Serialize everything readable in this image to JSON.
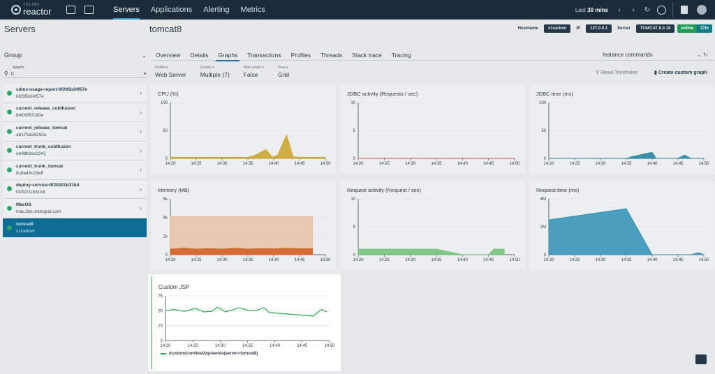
{
  "nav": {
    "logo_small": "TULIAN",
    "logo_big": "reactor",
    "links": [
      "Servers",
      "Applications",
      "Alerting",
      "Metrics"
    ],
    "active_link": "Servers",
    "range_prefix": "Last",
    "range_value": "30 mins"
  },
  "header": {
    "section_title": "Servers",
    "server_title": "tomcat8",
    "meta": {
      "hostname_key": "Hostname",
      "hostname_val": "x1carbon",
      "ip_key": "IP",
      "ip_val": "127.0.0.1",
      "server_key": "Server",
      "server_val": "TOMCAT 8.0.18",
      "status": "online",
      "uptime": "37m"
    }
  },
  "sidebar": {
    "group_label": "Group",
    "search_label": "Search",
    "search_value": "c",
    "servers": [
      {
        "name": "cdms-usage-report-6f295b34f57e",
        "id": "6f295b34f57e"
      },
      {
        "name": "current_release_coldfusion",
        "id": "84f00f67c80e"
      },
      {
        "name": "current_release_tomcat",
        "id": "a6175a26250a"
      },
      {
        "name": "current_trunk_coldfusion",
        "id": "ee98b2ec2241"
      },
      {
        "name": "current_trunk_tomcat",
        "id": "6c8a49c29eff"
      },
      {
        "name": "deploy-service-9f29201b31b4",
        "id": "9f29201b31b4"
      },
      {
        "name": "MacOS",
        "id": "mac.bbn.intergral.com"
      },
      {
        "name": "tomcat8",
        "id": "x1carbon"
      }
    ]
  },
  "tabs": [
    "Overview",
    "Details",
    "Graphs",
    "Transactions",
    "Profiles",
    "Threads",
    "Stack trace",
    "Tracing"
  ],
  "active_tab": "Graphs",
  "instance_commands": "Instance commands",
  "filters": [
    {
      "label": "Profile ▾",
      "value": "Web Server"
    },
    {
      "label": "Graphs ▾",
      "value": "Multiple (7)"
    },
    {
      "label": "Hide empty ▾",
      "value": "False"
    },
    {
      "label": "View ▾",
      "value": "Grid"
    }
  ],
  "reset_timeframe": "Reset Timeframe",
  "create_custom_graph": "Create custom graph",
  "panels": {
    "cpu": "CPU (%)",
    "jdbc_activity": "JDBC activity (Requests / sec)",
    "jdbc_time": "JDBC time (ms)",
    "memory": "Memory (MB)",
    "request_activity": "Request activity (Request / sec)",
    "request_time": "Request time (ms)",
    "custom_jsp": "Custom JSP",
    "custom_legend": "/custom/com/test/jsp/series(server=tomcat8)"
  },
  "colors": {
    "cpu": "#c9a227",
    "jdbc_time": "#1f7fa0",
    "memory_band": "#e8b898",
    "memory_line": "#d45a1e",
    "request_activity": "#6fbf72",
    "request_time": "#2f8fb4",
    "custom": "#2ca84e",
    "active_server": "#0e6b93"
  },
  "chart_data": [
    {
      "type": "area",
      "title": "CPU (%)",
      "x": [
        "14:20",
        "14:25",
        "14:30",
        "14:35",
        "14:40",
        "14:45",
        "14:50"
      ],
      "ylim": [
        0,
        100
      ],
      "yticks": [
        "0",
        "50",
        "100"
      ],
      "series": [
        {
          "points": [
            [
              0,
              2
            ],
            [
              1,
              2
            ],
            [
              2,
              2
            ],
            [
              3,
              2
            ],
            [
              3.3,
              6
            ],
            [
              3.7,
              16
            ],
            [
              3.95,
              2
            ],
            [
              4.15,
              6
            ],
            [
              4.5,
              42
            ],
            [
              4.75,
              3
            ],
            [
              5,
              2
            ],
            [
              6,
              2
            ]
          ]
        }
      ]
    },
    {
      "type": "line",
      "title": "JDBC activity (Requests / sec)",
      "x": [
        "14:20",
        "14:25",
        "14:30",
        "14:35",
        "14:40",
        "14:45",
        "14:50"
      ],
      "ylim": [
        0,
        10
      ],
      "yticks": [
        "0",
        "5",
        "10"
      ],
      "series": [
        {
          "points": [
            [
              0,
              0
            ],
            [
              6,
              0
            ]
          ]
        }
      ]
    },
    {
      "type": "area",
      "title": "JDBC time (ms)",
      "x": [
        "14:20",
        "14:25",
        "14:30",
        "14:35",
        "14:40",
        "14:45",
        "14:50"
      ],
      "ylim": [
        0,
        100
      ],
      "yticks": [
        "0",
        "50",
        "100"
      ],
      "series": [
        {
          "points": [
            [
              0,
              0
            ],
            [
              3,
              0
            ],
            [
              3.2,
              3
            ],
            [
              4,
              11
            ],
            [
              4.15,
              0
            ],
            [
              5,
              0
            ],
            [
              5.25,
              6
            ],
            [
              5.5,
              0
            ],
            [
              6,
              0
            ]
          ]
        }
      ]
    },
    {
      "type": "area",
      "title": "Memory (MB)",
      "x": [
        "14:20",
        "14:25",
        "14:30",
        "14:35",
        "14:40",
        "14:45",
        "14:50"
      ],
      "ylim": [
        0,
        6000
      ],
      "yticks": [
        "0",
        "2k",
        "4k",
        "6k"
      ],
      "series": [
        {
          "points": [
            [
              0,
              4100
            ],
            [
              5.5,
              4100
            ]
          ]
        },
        {
          "points": [
            [
              0,
              600
            ],
            [
              0.5,
              700
            ],
            [
              1,
              600
            ],
            [
              1.5,
              650
            ],
            [
              2,
              600
            ],
            [
              2.5,
              700
            ],
            [
              3,
              600
            ],
            [
              3.5,
              650
            ],
            [
              4,
              620
            ],
            [
              4.5,
              700
            ],
            [
              5,
              640
            ],
            [
              5.5,
              650
            ]
          ]
        }
      ]
    },
    {
      "type": "area",
      "title": "Request activity (Request / sec)",
      "x": [
        "14:20",
        "14:25",
        "14:30",
        "14:35",
        "14:40",
        "14:45",
        "14:50"
      ],
      "ylim": [
        0,
        10
      ],
      "yticks": [
        "0",
        "5",
        "10"
      ],
      "series": [
        {
          "points": [
            [
              0,
              1
            ],
            [
              3,
              1
            ],
            [
              4,
              0
            ],
            [
              5,
              0
            ],
            [
              5.2,
              1
            ],
            [
              5.6,
              1
            ]
          ]
        }
      ]
    },
    {
      "type": "area",
      "title": "Request time (ms)",
      "x": [
        "14:20",
        "14:25",
        "14:30",
        "14:35",
        "14:40",
        "14:45",
        "14:50"
      ],
      "ylim": [
        0,
        4000000
      ],
      "yticks": [
        "0",
        "2M",
        "4M"
      ],
      "series": [
        {
          "points": [
            [
              0,
              2500000
            ],
            [
              3,
              3300000
            ],
            [
              4,
              0
            ],
            [
              5.5,
              0
            ],
            [
              5.8,
              150000
            ],
            [
              6,
              0
            ]
          ]
        }
      ]
    },
    {
      "type": "line",
      "title": "Custom JSP",
      "x": [
        "14:20",
        "14:25",
        "14:30",
        "14:35",
        "14:40",
        "14:45",
        "14:50"
      ],
      "ylim": [
        0,
        75
      ],
      "yticks": [
        "0",
        "25",
        "50",
        "75"
      ],
      "series": [
        {
          "name": "/custom/com/test/jsp/series(server=tomcat8)",
          "points": [
            [
              0,
              50
            ],
            [
              0.3,
              52
            ],
            [
              0.7,
              49
            ],
            [
              1.1,
              54
            ],
            [
              1.4,
              48
            ],
            [
              1.7,
              49
            ],
            [
              1.9,
              56
            ],
            [
              2.2,
              48
            ],
            [
              2.7,
              55
            ],
            [
              3,
              51
            ],
            [
              3.3,
              50
            ],
            [
              3.6,
              55
            ],
            [
              3.8,
              47
            ],
            [
              5.4,
              41
            ],
            [
              5.7,
              52
            ],
            [
              5.9,
              48
            ]
          ]
        }
      ]
    }
  ]
}
